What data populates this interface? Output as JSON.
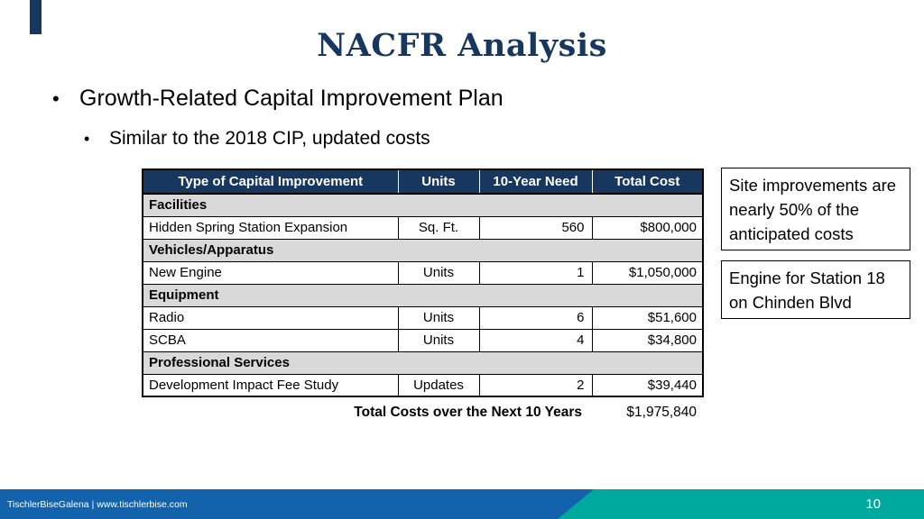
{
  "slide": {
    "title": "NACFR Analysis",
    "bullet1": "Growth-Related Capital Improvement Plan",
    "bullet2": "Similar to the 2018 CIP, updated costs",
    "bullet_glyph": "•",
    "page_number": "10",
    "footer_text": "TischlerBiseGalena  |  www.tischlerbise.com"
  },
  "table": {
    "headers": [
      "Type of Capital Improvement",
      "Units",
      "10-Year Need",
      "Total Cost"
    ],
    "rows": [
      {
        "type": "section",
        "label": "Facilities"
      },
      {
        "type": "data",
        "cells": [
          "Hidden Spring Station Expansion",
          "Sq. Ft.",
          "560",
          "$800,000"
        ]
      },
      {
        "type": "section",
        "label": "Vehicles/Apparatus"
      },
      {
        "type": "data",
        "cells": [
          "New Engine",
          "Units",
          "1",
          "$1,050,000"
        ]
      },
      {
        "type": "section",
        "label": "Equipment"
      },
      {
        "type": "data",
        "cells": [
          "Radio",
          "Units",
          "6",
          "$51,600"
        ]
      },
      {
        "type": "data",
        "cells": [
          "SCBA",
          "Units",
          "4",
          "$34,800"
        ]
      },
      {
        "type": "section",
        "label": "Professional Services"
      },
      {
        "type": "data",
        "cells": [
          "Development Impact Fee Study",
          "Updates",
          "2",
          "$39,440"
        ]
      }
    ],
    "total_label": "Total Costs over the Next 10 Years",
    "total_value": "$1,975,840"
  },
  "callouts": [
    {
      "text": "Site improvements are nearly 50% of the anticipated costs"
    },
    {
      "text": "Engine for Station 18 on Chinden Blvd"
    }
  ],
  "colors": {
    "title_navy": "#17375E",
    "table_header_navy": "#17375E",
    "section_gray": "#D9D9D9",
    "footer_blue": "#1262AC",
    "footer_teal": "#00A99D"
  }
}
